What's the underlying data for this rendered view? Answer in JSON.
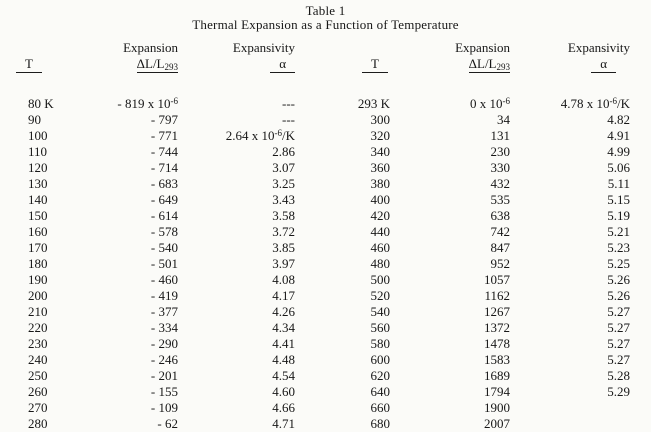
{
  "title": "Table 1",
  "subtitle": "Thermal Expansion as a Function of Temperature",
  "headers": {
    "t": "T",
    "expansion_top": "Expansion",
    "expansion_bottom": "ΔL/L_{293}",
    "expansivity_top": "Expansivity",
    "expansivity_bottom": "α"
  },
  "rows": [
    [
      "80 K",
      "- 819 x 10^{-6}",
      "---",
      "293 K",
      "0 x 10^{-6}",
      "4.78 x 10^{-6}/K"
    ],
    [
      "90",
      "- 797",
      "---",
      "300",
      "34",
      "4.82"
    ],
    [
      "100",
      "- 771",
      "2.64 x 10^{-6}/K",
      "320",
      "131",
      "4.91"
    ],
    [
      "110",
      "- 744",
      "2.86",
      "340",
      "230",
      "4.99"
    ],
    [
      "120",
      "- 714",
      "3.07",
      "360",
      "330",
      "5.06"
    ],
    [
      "130",
      "- 683",
      "3.25",
      "380",
      "432",
      "5.11"
    ],
    [
      "140",
      "- 649",
      "3.43",
      "400",
      "535",
      "5.15"
    ],
    [
      "150",
      "- 614",
      "3.58",
      "420",
      "638",
      "5.19"
    ],
    [
      "160",
      "- 578",
      "3.72",
      "440",
      "742",
      "5.21"
    ],
    [
      "170",
      "- 540",
      "3.85",
      "460",
      "847",
      "5.23"
    ],
    [
      "180",
      "- 501",
      "3.97",
      "480",
      "952",
      "5.25"
    ],
    [
      "190",
      "- 460",
      "4.08",
      "500",
      "1057",
      "5.26"
    ],
    [
      "200",
      "- 419",
      "4.17",
      "520",
      "1162",
      "5.26"
    ],
    [
      "210",
      "- 377",
      "4.26",
      "540",
      "1267",
      "5.27"
    ],
    [
      "220",
      "- 334",
      "4.34",
      "560",
      "1372",
      "5.27"
    ],
    [
      "230",
      "- 290",
      "4.41",
      "580",
      "1478",
      "5.27"
    ],
    [
      "240",
      "- 246",
      "4.48",
      "600",
      "1583",
      "5.27"
    ],
    [
      "250",
      "- 201",
      "4.54",
      "620",
      "1689",
      "5.28"
    ],
    [
      "260",
      "- 155",
      "4.60",
      "640",
      "1794",
      "5.29"
    ],
    [
      "270",
      "- 109",
      "4.66",
      "660",
      "1900",
      ""
    ],
    [
      "280",
      "- 62",
      "4.71",
      "680",
      "2007",
      ""
    ]
  ]
}
